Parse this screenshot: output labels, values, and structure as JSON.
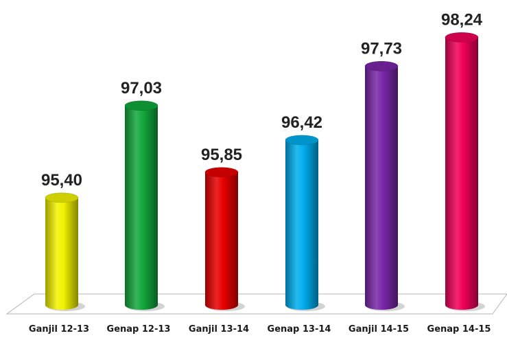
{
  "chart_data": {
    "type": "bar",
    "style": "3d-cylinder",
    "categories": [
      "Ganjil 12-13",
      "Genap 12-13",
      "Ganjil 13-14",
      "Genap 13-14",
      "Ganjil 14-15",
      "Genap 14-15"
    ],
    "values": [
      95.4,
      97.03,
      95.85,
      96.42,
      97.73,
      98.24
    ],
    "value_labels": [
      "95,40",
      "97,03",
      "95,85",
      "96,42",
      "97,73",
      "98,24"
    ],
    "colors": [
      "#f2f200",
      "#12a83c",
      "#e80000",
      "#00aeef",
      "#7a26a8",
      "#f0005a"
    ],
    "ylim": [
      93.5,
      98.5
    ],
    "grid": false,
    "legend": "none"
  }
}
